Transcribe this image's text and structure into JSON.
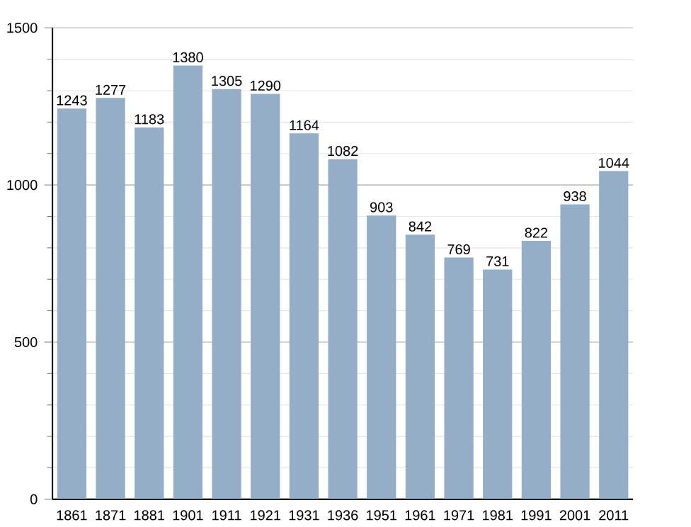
{
  "chart_data": {
    "type": "bar",
    "categories": [
      "1861",
      "1871",
      "1881",
      "1901",
      "1911",
      "1921",
      "1931",
      "1936",
      "1951",
      "1961",
      "1971",
      "1981",
      "1991",
      "2001",
      "2011"
    ],
    "values": [
      1243,
      1277,
      1183,
      1380,
      1305,
      1290,
      1164,
      1082,
      903,
      842,
      769,
      731,
      822,
      938,
      1044
    ],
    "color": "#94aec8",
    "ylim": [
      0,
      1500
    ],
    "yticks": [
      0,
      500,
      1000,
      1500
    ],
    "grid": "y",
    "data_labels": true
  }
}
